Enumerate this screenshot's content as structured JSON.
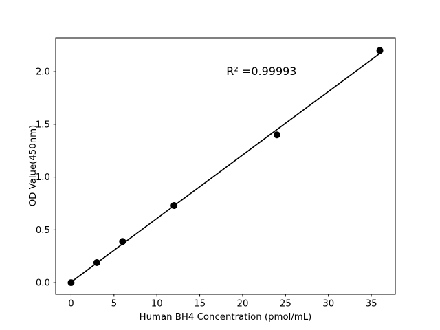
{
  "chart_data": {
    "type": "scatter",
    "title": "",
    "xlabel": "Human BH4 Concentration (pmol/mL)",
    "ylabel": "OD Value(450nm)",
    "x": [
      0,
      3,
      6,
      12,
      24,
      36
    ],
    "y": [
      0.0,
      0.19,
      0.39,
      0.73,
      1.4,
      2.2
    ],
    "series": [
      {
        "name": "standards",
        "marker": "filled-circle",
        "color": "#000000"
      }
    ],
    "fit_line": {
      "x": [
        0,
        36
      ],
      "y": [
        0.006,
        2.172
      ],
      "color": "#000000"
    },
    "annotation": {
      "text": "R² =0.99993",
      "x_data": 22.2,
      "y_data": 2.0
    },
    "x_ticks": [
      0,
      5,
      10,
      15,
      20,
      25,
      30,
      35
    ],
    "x_tick_labels": [
      "0",
      "5",
      "10",
      "15",
      "20",
      "25",
      "30",
      "35"
    ],
    "y_ticks": [
      0.0,
      0.5,
      1.0,
      1.5,
      2.0
    ],
    "y_tick_labels": [
      "0.0",
      "0.5",
      "1.0",
      "1.5",
      "2.0"
    ],
    "xlim": [
      -1.8,
      37.8
    ],
    "ylim": [
      -0.11,
      2.32
    ],
    "grid": false,
    "legend": "none",
    "background_color": "#ffffff",
    "axis_color": "#000000",
    "marker_color": "#000000",
    "line_color": "#000000"
  }
}
